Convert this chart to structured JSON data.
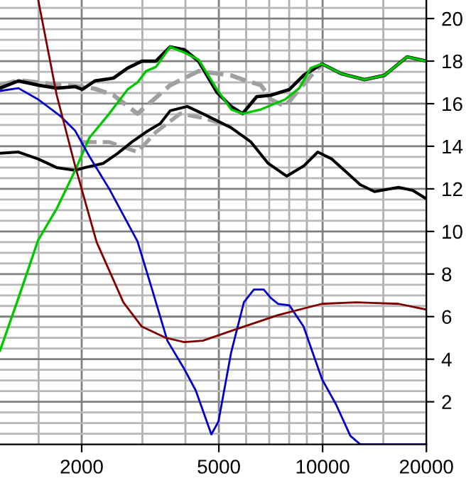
{
  "chart_data": {
    "type": "line",
    "log": "x",
    "grid": true,
    "marker": "none",
    "xlim": [
      1159,
      20000
    ],
    "ylim": [
      0,
      20.87
    ],
    "xticks": [
      {
        "value": 1500,
        "label": null
      },
      {
        "value": 2000,
        "label": "2000"
      },
      {
        "value": 3000,
        "label": null
      },
      {
        "value": 4000,
        "label": null
      },
      {
        "value": 5000,
        "label": "5000"
      },
      {
        "value": 6000,
        "label": null
      },
      {
        "value": 7000,
        "label": null
      },
      {
        "value": 8000,
        "label": null
      },
      {
        "value": 9000,
        "label": null
      },
      {
        "value": 10000,
        "label": "10000"
      },
      {
        "value": 15000,
        "label": null
      },
      {
        "value": 20000,
        "label": "20000"
      }
    ],
    "yticks": [
      {
        "value": 0.5,
        "label": null
      },
      {
        "value": 1,
        "label": null
      },
      {
        "value": 1.5,
        "label": null
      },
      2,
      {
        "value": 2.5,
        "label": null
      },
      {
        "value": 3,
        "label": null
      },
      {
        "value": 3.5,
        "label": null
      },
      4,
      {
        "value": 4.5,
        "label": null
      },
      {
        "value": 5,
        "label": null
      },
      {
        "value": 5.5,
        "label": null
      },
      6,
      {
        "value": 6.5,
        "label": null
      },
      {
        "value": 7,
        "label": null
      },
      {
        "value": 7.5,
        "label": null
      },
      8,
      {
        "value": 8.5,
        "label": null
      },
      {
        "value": 9,
        "label": null
      },
      {
        "value": 9.5,
        "label": null
      },
      10,
      {
        "value": 10.5,
        "label": null
      },
      {
        "value": 11,
        "label": null
      },
      {
        "value": 11.5,
        "label": null
      },
      12,
      {
        "value": 12.5,
        "label": null
      },
      {
        "value": 13,
        "label": null
      },
      {
        "value": 13.5,
        "label": null
      },
      14,
      {
        "value": 14.5,
        "label": null
      },
      {
        "value": 15,
        "label": null
      },
      {
        "value": 15.5,
        "label": null
      },
      16,
      {
        "value": 16.5,
        "label": null
      },
      {
        "value": 17,
        "label": null
      },
      {
        "value": 17.5,
        "label": null
      },
      18,
      {
        "value": 18.5,
        "label": null
      },
      {
        "value": 19,
        "label": null
      },
      {
        "value": 19.5,
        "label": null
      },
      20,
      {
        "value": 20.5,
        "label": null
      }
    ],
    "series": [
      {
        "color": "#a0a0a0",
        "line_style": "dashed",
        "x": [
          1159,
          1311,
          1693,
          2008,
          2186,
          2473,
          2904,
          3613,
          4366,
          5430,
          6026,
          6624,
          7080,
          7784,
          8556,
          9497,
          10000
        ],
        "values": [
          16.87,
          17.1,
          16.9,
          16.8,
          16.7,
          16.4,
          15.53,
          16.87,
          17.53,
          17.33,
          17.07,
          16.87,
          16.2,
          15.87,
          16.67,
          17.53,
          17.87
        ]
      },
      {
        "color": "#a0a0a0",
        "line_style": "dashed",
        "x": [
          2008,
          2404,
          2904,
          3286,
          3860,
          4494,
          5430
        ],
        "values": [
          14.2,
          14.2,
          13.73,
          14.67,
          15.53,
          15.33,
          14.93
        ]
      },
      {
        "color": "#000000",
        "x": [
          1159,
          1311,
          1496,
          1693,
          1915,
          2008,
          2186,
          2473,
          2718,
          2989,
          3286,
          3613,
          3972,
          4366,
          4939,
          5430,
          5858,
          6442,
          7080,
          8010,
          8806,
          9954,
          11370,
          13234,
          15110,
          17580,
          20000
        ],
        "values": [
          16.73,
          17.07,
          16.87,
          16.73,
          16.8,
          16.67,
          17.07,
          17.2,
          17.67,
          18.0,
          18.0,
          18.67,
          18.53,
          18.0,
          16.53,
          15.87,
          15.53,
          16.33,
          16.4,
          16.67,
          17.33,
          17.87,
          17.4,
          17.13,
          17.33,
          18.2,
          18.0
        ]
      },
      {
        "color": "#000000",
        "x": [
          1159,
          1311,
          1496,
          1693,
          1915,
          2046,
          2312,
          2544,
          2797,
          3076,
          3382,
          3613,
          4049,
          4494,
          5430,
          6197,
          6949,
          7860,
          8806,
          9678,
          10640,
          12850,
          14140,
          16600,
          18260,
          20000
        ],
        "values": [
          13.67,
          13.73,
          13.4,
          13.0,
          12.87,
          13.0,
          13.2,
          13.67,
          14.2,
          14.67,
          15.07,
          15.67,
          15.87,
          15.53,
          14.87,
          14.2,
          13.2,
          12.6,
          13.07,
          13.73,
          13.4,
          12.2,
          11.87,
          12.07,
          11.93,
          11.53
        ]
      },
      {
        "color": "#00c800",
        "x": [
          1159,
          1311,
          1496,
          1693,
          1915,
          2105,
          2404,
          2718,
          2904,
          3076,
          3286,
          3613,
          3972,
          4366,
          4939,
          5430,
          5858,
          6624,
          7784,
          8556,
          9230,
          9954,
          11370,
          13234,
          15110,
          17580,
          20000
        ],
        "values": [
          4.4,
          6.87,
          9.6,
          11.07,
          12.87,
          14.4,
          15.53,
          16.67,
          17.0,
          17.53,
          17.73,
          18.67,
          18.4,
          18.07,
          16.67,
          15.73,
          15.53,
          15.73,
          16.2,
          16.73,
          17.67,
          17.87,
          17.4,
          17.13,
          17.33,
          18.2,
          18.0
        ]
      },
      {
        "color": "#0000c8",
        "x": [
          1159,
          1311,
          1496,
          1740,
          1915,
          2105,
          2404,
          2904,
          3194,
          3545,
          3972,
          4285,
          4756,
          4986,
          5430,
          5910,
          6318,
          6749,
          7080,
          7425,
          8010,
          8806,
          9408,
          9954,
          10940,
          12036,
          12850,
          20000
        ],
        "values": [
          16.6,
          16.73,
          16.2,
          15.4,
          14.73,
          13.53,
          12.0,
          9.53,
          7.33,
          4.87,
          3.53,
          2.53,
          0.47,
          1.07,
          4.33,
          6.67,
          7.27,
          7.27,
          6.87,
          6.6,
          6.53,
          5.53,
          4.2,
          3.07,
          1.87,
          0.4,
          0,
          0
        ]
      },
      {
        "color": "#800000",
        "x": [
          1496,
          1693,
          1915,
          2210,
          2642,
          2989,
          3512,
          3972,
          4494,
          5430,
          7425,
          9954,
          12500,
          16600,
          20000
        ],
        "values": [
          20.87,
          16.4,
          13.07,
          9.5,
          6.67,
          5.53,
          5.0,
          4.8,
          4.87,
          5.33,
          6.07,
          6.6,
          6.67,
          6.6,
          6.33
        ]
      }
    ]
  }
}
